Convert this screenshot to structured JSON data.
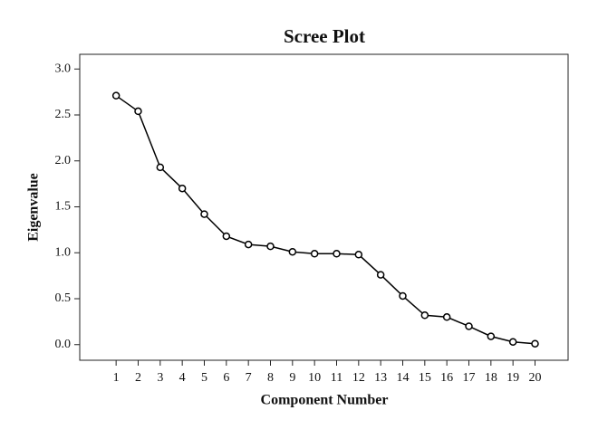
{
  "chart_data": {
    "type": "line",
    "title": "Scree Plot",
    "xlabel": "Component Number",
    "ylabel": "Eigenvalue",
    "x": [
      1,
      2,
      3,
      4,
      5,
      6,
      7,
      8,
      9,
      10,
      11,
      12,
      13,
      14,
      15,
      16,
      17,
      18,
      19,
      20
    ],
    "values": [
      2.71,
      2.54,
      1.93,
      1.7,
      1.42,
      1.18,
      1.09,
      1.07,
      1.01,
      0.99,
      0.99,
      0.98,
      0.76,
      0.53,
      0.32,
      0.3,
      0.2,
      0.09,
      0.03,
      0.01
    ],
    "color": "#000000",
    "xlim": [
      -0.65,
      21.5
    ],
    "xticks": [
      1,
      2,
      3,
      4,
      5,
      6,
      7,
      8,
      9,
      10,
      11,
      12,
      13,
      14,
      15,
      16,
      17,
      18,
      19,
      20
    ],
    "ylim": [
      -0.17,
      3.16
    ],
    "yticks": [
      {
        "value": 0,
        "label": "0.0"
      },
      0.5,
      {
        "value": 1,
        "label": "1.0"
      },
      1.5,
      {
        "value": 2,
        "label": "2.0"
      },
      2.5,
      {
        "value": 3,
        "label": "3.0"
      }
    ]
  }
}
